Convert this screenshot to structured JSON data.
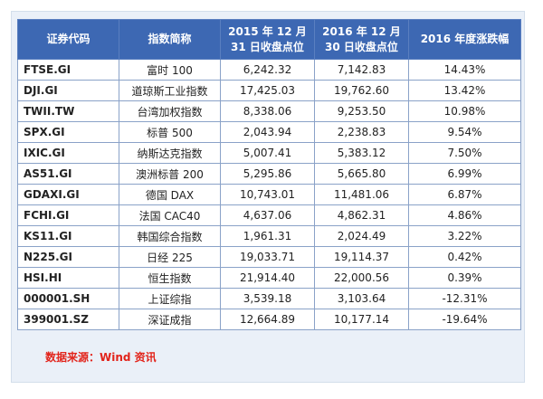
{
  "table": {
    "headers": {
      "code": "证券代码",
      "name": "指数简称",
      "close2015_line1": "2015 年 12 月",
      "close2015_line2": "31 日收盘点位",
      "close2016_line1": "2016 年 12 月",
      "close2016_line2": "30 日收盘点位",
      "change": "2016 年度涨跌幅"
    },
    "rows": [
      {
        "code": "FTSE.GI",
        "name": "富时 100",
        "close2015": "6,242.32",
        "close2016": "7,142.83",
        "change": "14.43%"
      },
      {
        "code": "DJI.GI",
        "name": "道琼斯工业指数",
        "close2015": "17,425.03",
        "close2016": "19,762.60",
        "change": "13.42%"
      },
      {
        "code": "TWII.TW",
        "name": "台湾加权指数",
        "close2015": "8,338.06",
        "close2016": "9,253.50",
        "change": "10.98%"
      },
      {
        "code": "SPX.GI",
        "name": "标普 500",
        "close2015": "2,043.94",
        "close2016": "2,238.83",
        "change": "9.54%"
      },
      {
        "code": "IXIC.GI",
        "name": "纳斯达克指数",
        "close2015": "5,007.41",
        "close2016": "5,383.12",
        "change": "7.50%"
      },
      {
        "code": "AS51.GI",
        "name": "澳洲标普 200",
        "close2015": "5,295.86",
        "close2016": "5,665.80",
        "change": "6.99%"
      },
      {
        "code": "GDAXI.GI",
        "name": "德国 DAX",
        "close2015": "10,743.01",
        "close2016": "11,481.06",
        "change": "6.87%"
      },
      {
        "code": "FCHI.GI",
        "name": "法国 CAC40",
        "close2015": "4,637.06",
        "close2016": "4,862.31",
        "change": "4.86%"
      },
      {
        "code": "KS11.GI",
        "name": "韩国综合指数",
        "close2015": "1,961.31",
        "close2016": "2,024.49",
        "change": "3.22%"
      },
      {
        "code": "N225.GI",
        "name": "日经 225",
        "close2015": "19,033.71",
        "close2016": "19,114.37",
        "change": "0.42%"
      },
      {
        "code": "HSI.HI",
        "name": "恒生指数",
        "close2015": "21,914.40",
        "close2016": "22,000.56",
        "change": "0.39%"
      },
      {
        "code": "000001.SH",
        "name": "上证综指",
        "close2015": "3,539.18",
        "close2016": "3,103.64",
        "change": "-12.31%"
      },
      {
        "code": "399001.SZ",
        "name": "深证成指",
        "close2015": "12,664.89",
        "close2016": "10,177.14",
        "change": "-19.64%"
      }
    ]
  },
  "source": "数据来源：Wind 资讯",
  "colors": {
    "header_bg": "#3d68b3",
    "panel_bg": "#eaf0f8",
    "source_text": "#e2241b"
  }
}
